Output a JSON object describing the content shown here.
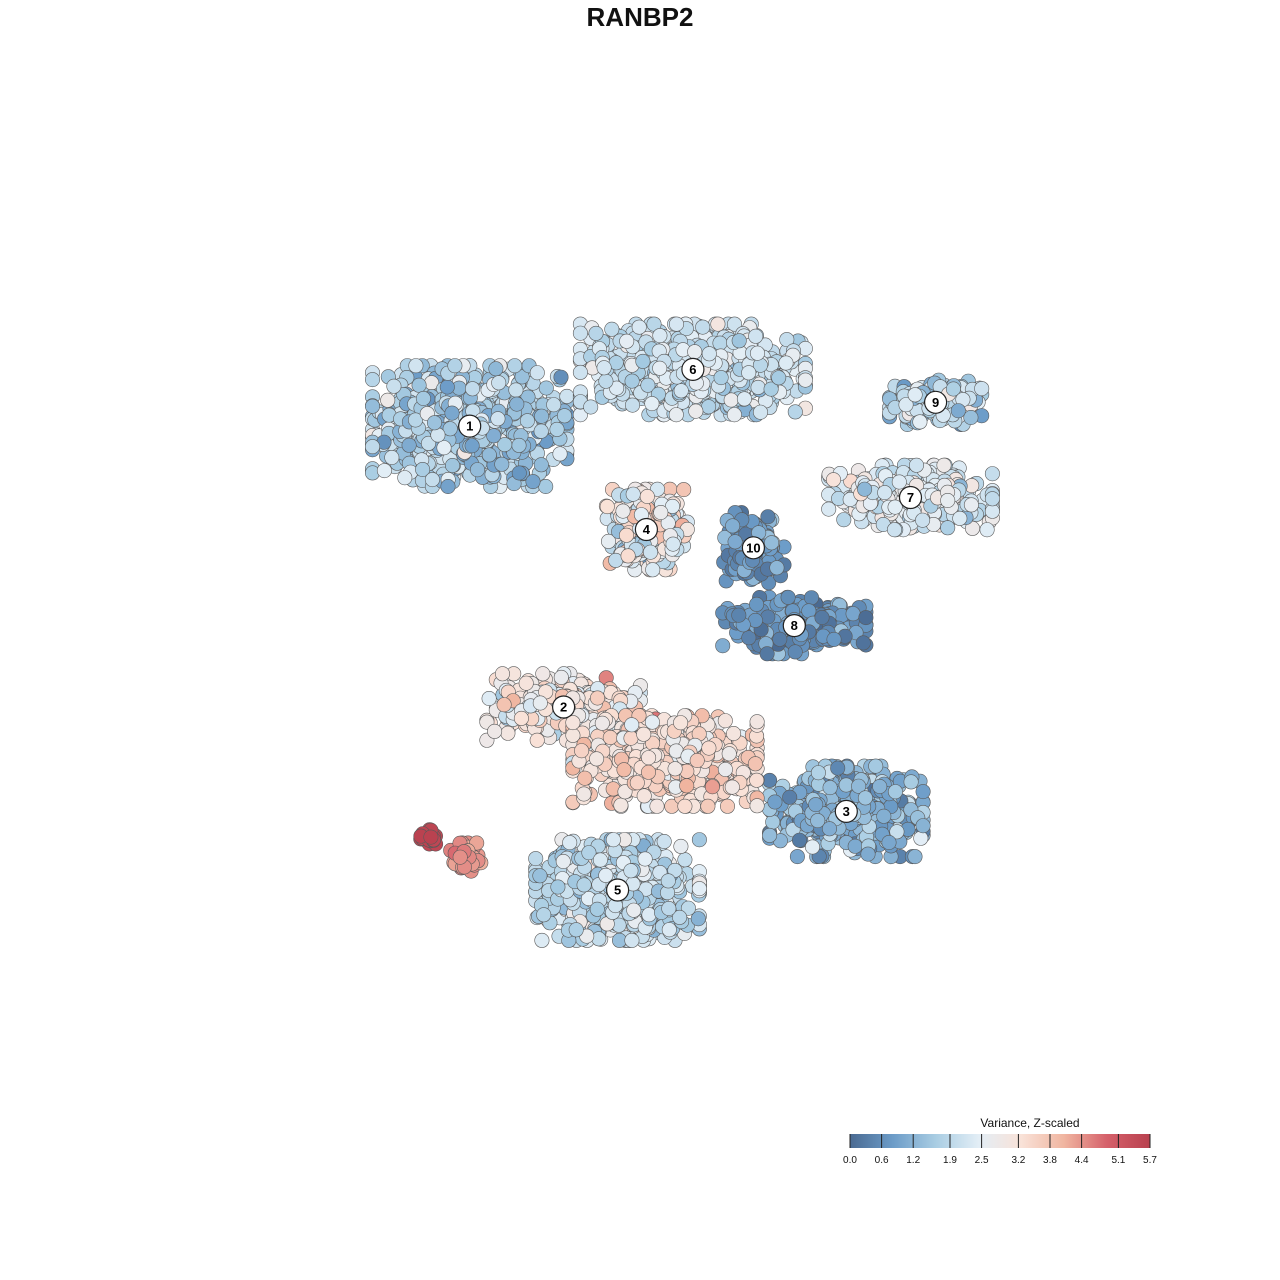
{
  "chart_data": {
    "type": "scatter",
    "title": "RANBP2",
    "xlabel": "",
    "ylabel": "",
    "xlim": [
      0,
      100
    ],
    "ylim": [
      0,
      100
    ],
    "grid": false,
    "legend": {
      "title": "Variance, Z-scaled",
      "placement": "bottom-right",
      "ticks": [
        "0.0",
        "0.6",
        "1.2",
        "1.9",
        "2.5",
        "3.2",
        "3.8",
        "4.4",
        "5.1",
        "5.7"
      ],
      "min": 0.0,
      "max": 5.7
    },
    "colorscale": [
      "#4a6a92",
      "#6c9cc8",
      "#a9cde3",
      "#e3eef6",
      "#f9e2d8",
      "#f0b5a0",
      "#d5606a",
      "#b9414f"
    ],
    "clusters": [
      {
        "label": "1",
        "x": 29.0,
        "y": 73.1,
        "sx": 9.5,
        "sy": 6.0,
        "n": 900,
        "value": 1.7,
        "spread": 0.8
      },
      {
        "label": "2",
        "x": 39.1,
        "y": 42.4,
        "sx": 7.5,
        "sy": 3.3,
        "n": 380,
        "value": 2.9,
        "spread": 0.9
      },
      {
        "label": "3",
        "x": 69.5,
        "y": 31.0,
        "sx": 7.5,
        "sy": 4.5,
        "n": 520,
        "value": 1.2,
        "spread": 0.8
      },
      {
        "label": "4",
        "x": 48.0,
        "y": 61.8,
        "sx": 4.0,
        "sy": 4.0,
        "n": 300,
        "value": 2.8,
        "spread": 1.2
      },
      {
        "label": "5",
        "x": 44.9,
        "y": 22.4,
        "sx": 8.0,
        "sy": 5.0,
        "n": 680,
        "value": 2.0,
        "spread": 0.7
      },
      {
        "label": "6",
        "x": 53.0,
        "y": 79.3,
        "sx": 11.0,
        "sy": 4.5,
        "n": 800,
        "value": 2.1,
        "spread": 0.6
      },
      {
        "label": "7",
        "x": 76.4,
        "y": 65.3,
        "sx": 8.0,
        "sy": 3.2,
        "n": 420,
        "value": 2.3,
        "spread": 0.7
      },
      {
        "label": "8",
        "x": 63.9,
        "y": 51.3,
        "sx": 7.0,
        "sy": 2.8,
        "n": 320,
        "value": 0.6,
        "spread": 0.6
      },
      {
        "label": "9",
        "x": 79.1,
        "y": 75.7,
        "sx": 4.5,
        "sy": 2.2,
        "n": 220,
        "value": 1.8,
        "spread": 0.9
      },
      {
        "label": "10",
        "x": 59.5,
        "y": 59.8,
        "sx": 3.0,
        "sy": 3.5,
        "n": 160,
        "value": 0.7,
        "spread": 0.6
      },
      {
        "label": "",
        "x": 50.0,
        "y": 36.5,
        "sx": 9.0,
        "sy": 4.5,
        "n": 650,
        "value": 3.3,
        "spread": 0.7
      },
      {
        "label": "",
        "x": 24.5,
        "y": 28.0,
        "sx": 1.0,
        "sy": 0.9,
        "n": 28,
        "value": 5.6,
        "spread": 0.1
      },
      {
        "label": "",
        "x": 28.5,
        "y": 26.0,
        "sx": 1.6,
        "sy": 1.4,
        "n": 45,
        "value": 4.4,
        "spread": 0.3
      }
    ]
  }
}
